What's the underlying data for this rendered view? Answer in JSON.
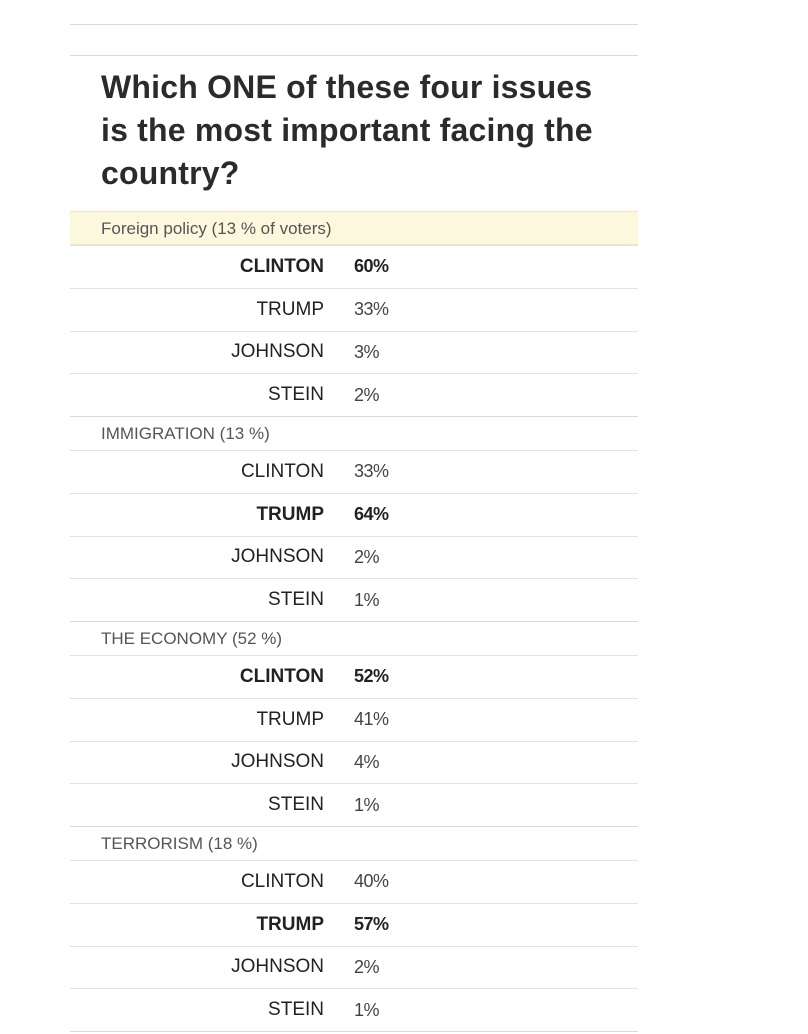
{
  "question": "Which ONE of these four issues is the most important facing the country?",
  "groups": [
    {
      "label": "Foreign policy (13 % of voters)",
      "highlight": true,
      "rows": [
        {
          "name": "CLINTON",
          "pct": "60%",
          "winner": true
        },
        {
          "name": "TRUMP",
          "pct": "33%",
          "winner": false
        },
        {
          "name": "JOHNSON",
          "pct": "3%",
          "winner": false
        },
        {
          "name": "STEIN",
          "pct": "2%",
          "winner": false
        }
      ]
    },
    {
      "label": "IMMIGRATION (13 %)",
      "highlight": false,
      "rows": [
        {
          "name": "CLINTON",
          "pct": "33%",
          "winner": false
        },
        {
          "name": "TRUMP",
          "pct": "64%",
          "winner": true
        },
        {
          "name": "JOHNSON",
          "pct": "2%",
          "winner": false
        },
        {
          "name": "STEIN",
          "pct": "1%",
          "winner": false
        }
      ]
    },
    {
      "label": "THE ECONOMY (52 %)",
      "highlight": false,
      "rows": [
        {
          "name": "CLINTON",
          "pct": "52%",
          "winner": true
        },
        {
          "name": "TRUMP",
          "pct": "41%",
          "winner": false
        },
        {
          "name": "JOHNSON",
          "pct": "4%",
          "winner": false
        },
        {
          "name": "STEIN",
          "pct": "1%",
          "winner": false
        }
      ]
    },
    {
      "label": "TERRORISM (18 %)",
      "highlight": false,
      "rows": [
        {
          "name": "CLINTON",
          "pct": "40%",
          "winner": false
        },
        {
          "name": "TRUMP",
          "pct": "57%",
          "winner": true
        },
        {
          "name": "JOHNSON",
          "pct": "2%",
          "winner": false
        },
        {
          "name": "STEIN",
          "pct": "1%",
          "winner": false
        }
      ]
    }
  ]
}
